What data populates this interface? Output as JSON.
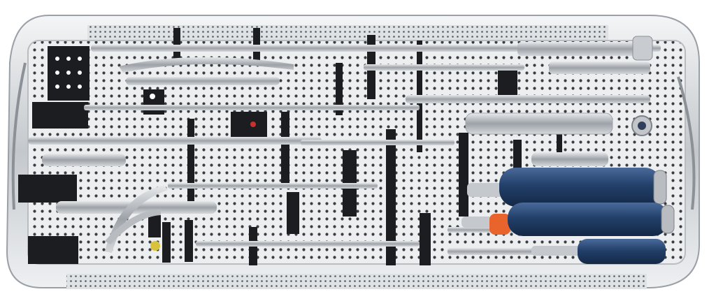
{
  "scene": {
    "subject": "perforated-instrument-tray",
    "colors": {
      "background": "#ffffff",
      "tray_metal": "#c9ccd0",
      "tray_inner": "#e6e8ea",
      "perforation": "#3a3d42",
      "bracket_black": "#1c1d20",
      "instrument_steel": "#a9adb3",
      "handle_blue": "#22406a",
      "accent_orange": "#e8642c",
      "accent_yellow": "#d8c23a"
    },
    "icons": [
      "tray",
      "surgical-instrument",
      "screwdriver-handle",
      "bracket",
      "perforated-panel"
    ]
  }
}
